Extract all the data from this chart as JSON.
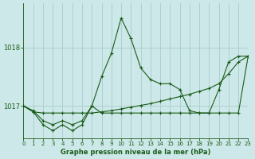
{
  "title": "Graphe pression niveau de la mer (hPa)",
  "bg_color": "#cde8e8",
  "grid_color": "#a8cccc",
  "line_color": "#1a5c1a",
  "xlim": [
    0,
    23
  ],
  "ylim": [
    1016.45,
    1018.75
  ],
  "yticks": [
    1017,
    1018
  ],
  "xticks": [
    0,
    1,
    2,
    3,
    4,
    5,
    6,
    7,
    8,
    9,
    10,
    11,
    12,
    13,
    14,
    15,
    16,
    17,
    18,
    19,
    20,
    21,
    22,
    23
  ],
  "s1": [
    1017.0,
    1016.92,
    1016.75,
    1016.68,
    1016.75,
    1016.68,
    1016.75,
    1017.0,
    1017.5,
    1017.9,
    1018.5,
    1018.15,
    1017.65,
    1017.45,
    1017.38,
    1017.38,
    1017.28,
    1016.92,
    1016.88,
    1016.88,
    1017.28,
    1017.75,
    1017.85,
    1017.85
  ],
  "s2": [
    1017.0,
    1016.9,
    1016.88,
    1016.88,
    1016.88,
    1016.88,
    1016.88,
    1016.88,
    1016.9,
    1016.92,
    1016.95,
    1016.98,
    1017.01,
    1017.04,
    1017.08,
    1017.12,
    1017.16,
    1017.2,
    1017.25,
    1017.3,
    1017.38,
    1017.55,
    1017.75,
    1017.85
  ],
  "s3": [
    1017.0,
    1016.9,
    1016.68,
    1016.58,
    1016.68,
    1016.58,
    1016.68,
    1017.0,
    1016.88,
    1016.88,
    1016.88,
    1016.88,
    1016.88,
    1016.88,
    1016.88,
    1016.88,
    1016.88,
    1016.88,
    1016.88,
    1016.88,
    1016.88,
    1016.88,
    1016.88,
    1017.85
  ]
}
